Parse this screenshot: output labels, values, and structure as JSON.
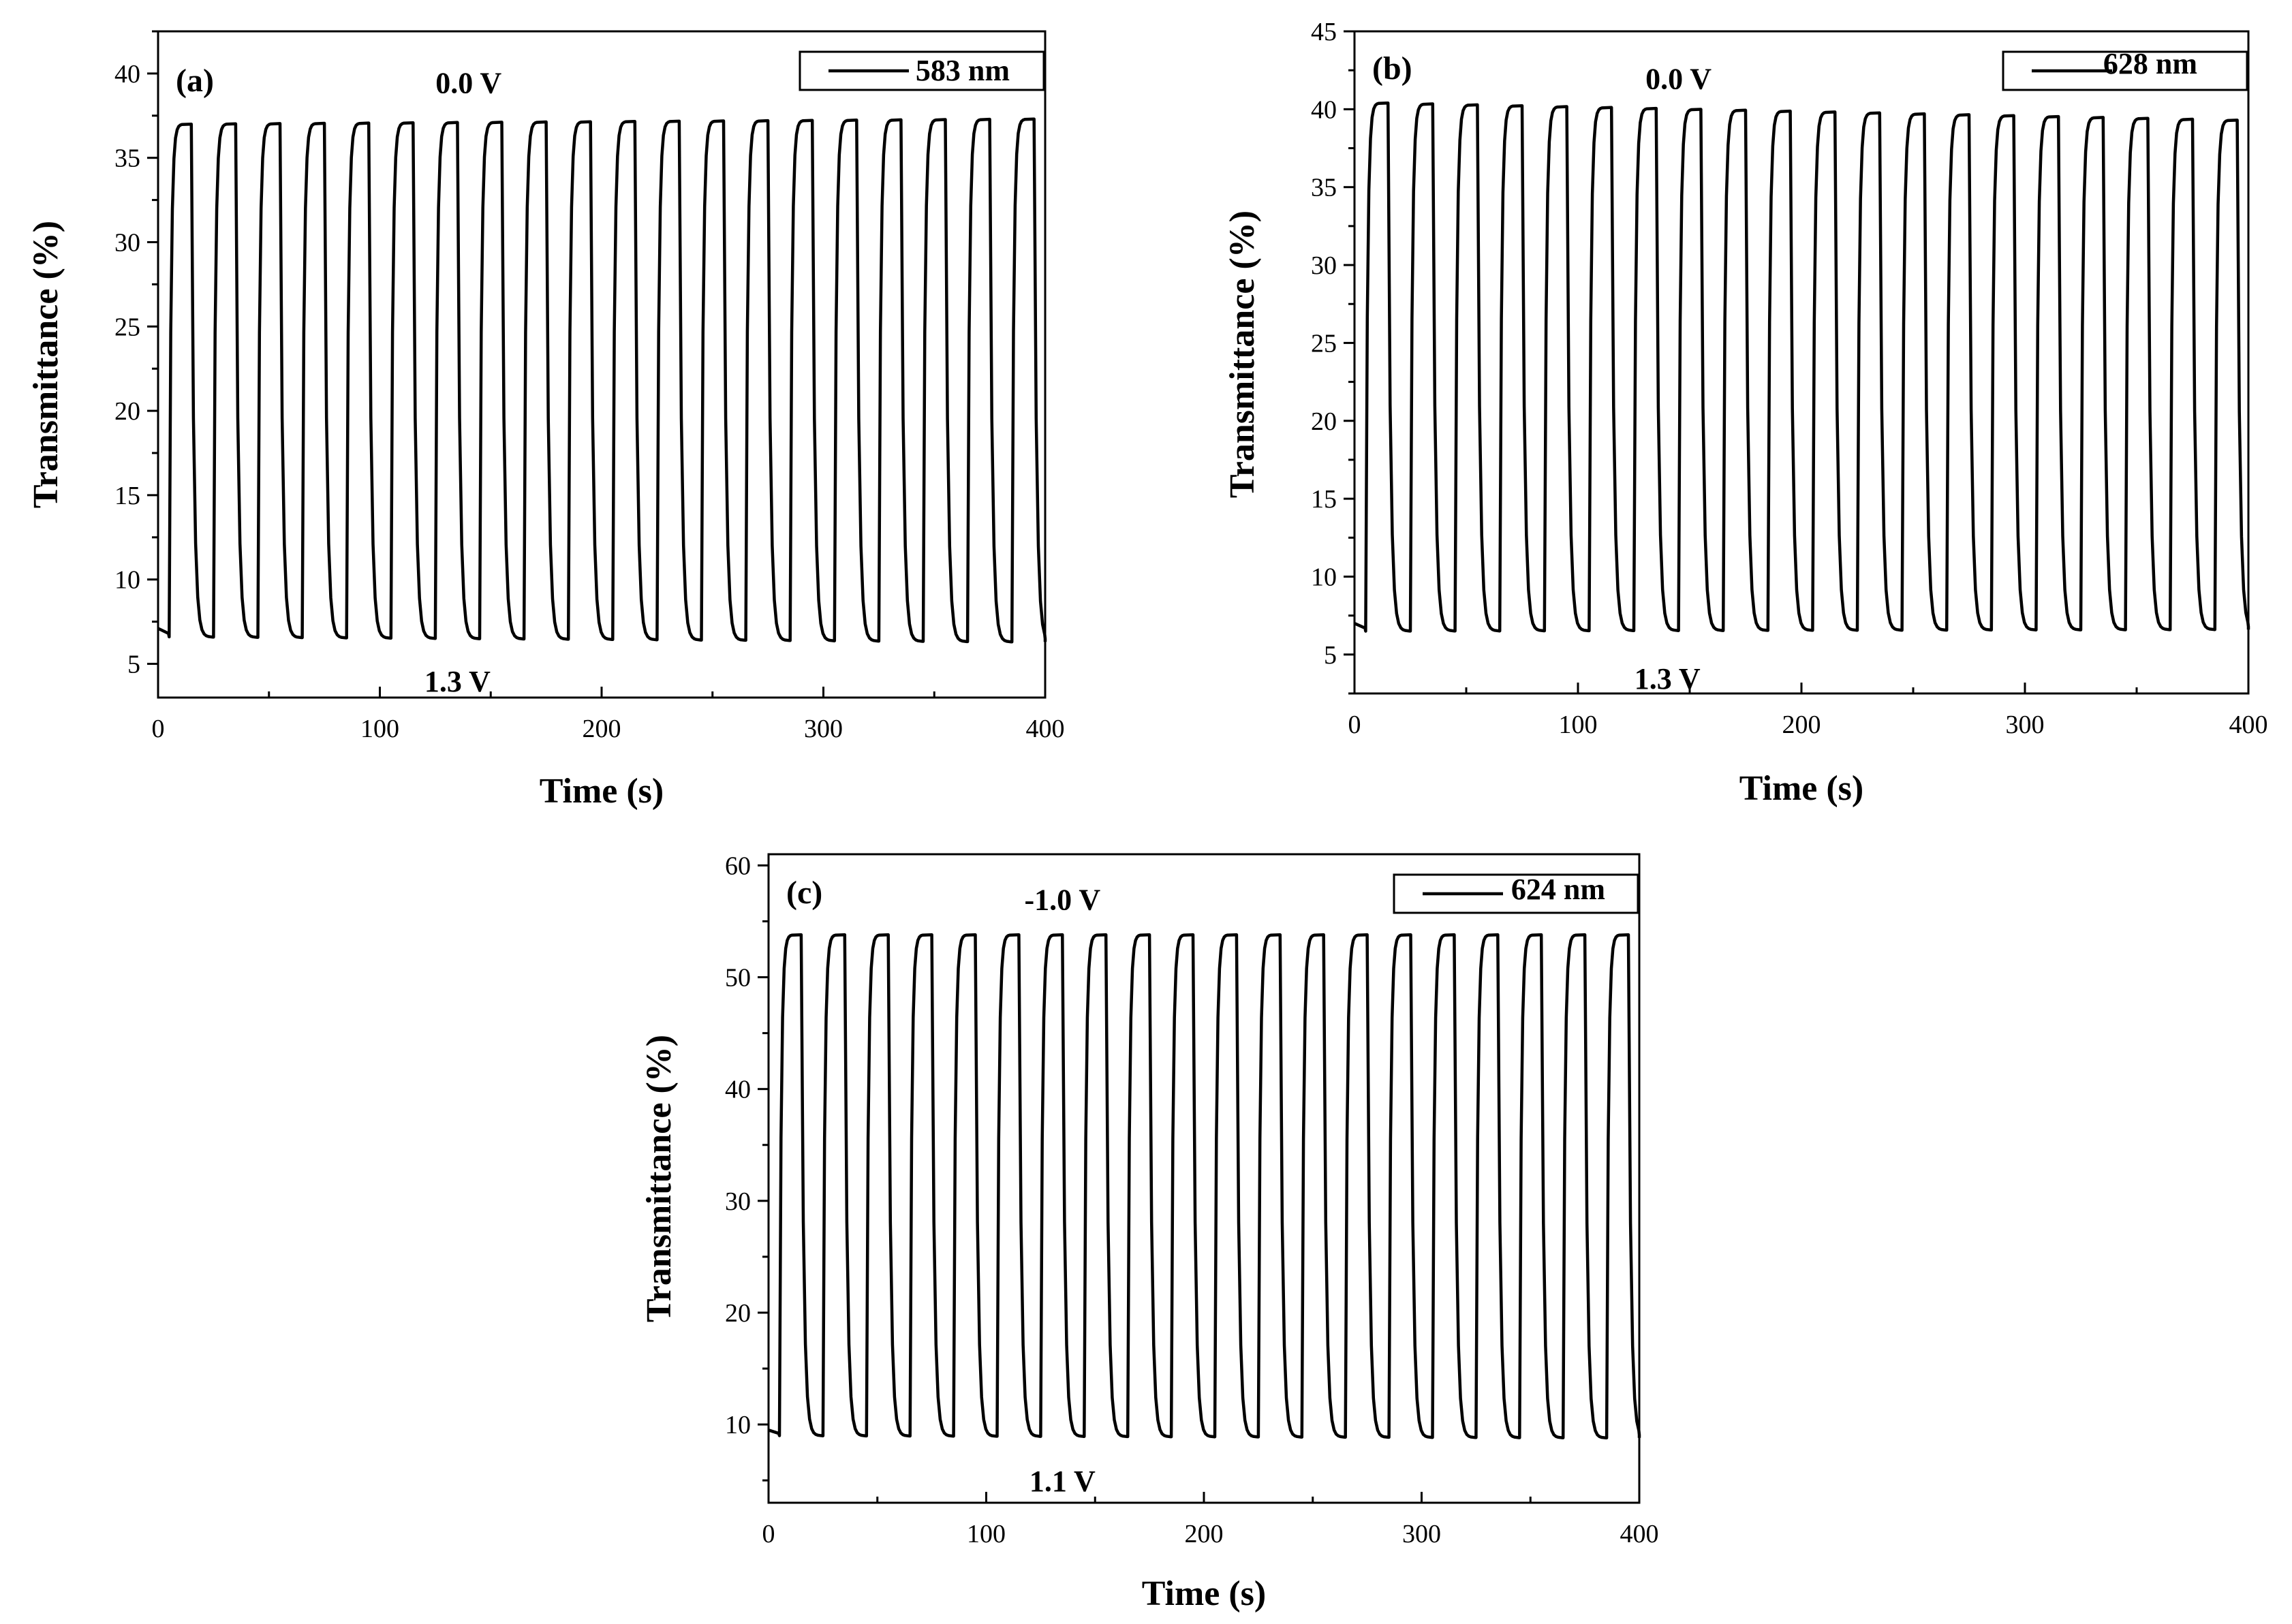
{
  "chart_data": [
    {
      "type": "line",
      "panel": "(a)",
      "legend": "583 nm",
      "xlabel": "Time (s)",
      "ylabel": "Transmittance (%)",
      "xlim": [
        0,
        400
      ],
      "ylim": [
        3,
        42.5
      ],
      "xticks": [
        0,
        100,
        200,
        300,
        400
      ],
      "yticks": [
        5,
        10,
        15,
        20,
        25,
        30,
        35,
        40
      ],
      "grid": false,
      "annotations": [
        {
          "text": "0.0 V",
          "x": 140,
          "y": 39.5
        },
        {
          "text": "1.3 V",
          "x": 135,
          "y": 4.0
        }
      ],
      "cycle": {
        "period_s": 20,
        "count": 20,
        "first_switch_s": 5
      },
      "series": [
        {
          "name": "583 nm",
          "bleached_start": 37.0,
          "bleached_end": 37.3,
          "colored_start": 6.6,
          "colored_end": 6.3
        }
      ]
    },
    {
      "type": "line",
      "panel": "(b)",
      "legend": "628 nm",
      "xlabel": "Time (s)",
      "ylabel": "Transmittance (%)",
      "xlim": [
        0,
        400
      ],
      "ylim": [
        2.5,
        45
      ],
      "xticks": [
        0,
        100,
        200,
        300,
        400
      ],
      "yticks": [
        5,
        10,
        15,
        20,
        25,
        30,
        35,
        40,
        45
      ],
      "grid": false,
      "annotations": [
        {
          "text": "0.0 V",
          "x": 145,
          "y": 42.0
        },
        {
          "text": "1.3 V",
          "x": 140,
          "y": 3.5
        }
      ],
      "cycle": {
        "period_s": 20,
        "count": 20,
        "first_switch_s": 5
      },
      "series": [
        {
          "name": "628 nm",
          "bleached_start": 40.4,
          "bleached_end": 39.3,
          "colored_start": 6.5,
          "colored_end": 6.6
        }
      ]
    },
    {
      "type": "line",
      "panel": "(c)",
      "legend": "624 nm",
      "xlabel": "Time (s)",
      "ylabel": "Transmittance (%)",
      "xlim": [
        0,
        400
      ],
      "ylim": [
        3,
        61
      ],
      "xticks": [
        0,
        100,
        200,
        300,
        400
      ],
      "yticks": [
        10,
        20,
        30,
        40,
        50,
        60
      ],
      "grid": false,
      "annotations": [
        {
          "text": "-1.0 V",
          "x": 135,
          "y": 57.0
        },
        {
          "text": "1.1 V",
          "x": 135,
          "y": 5.0
        }
      ],
      "cycle": {
        "period_s": 20,
        "count": 20,
        "first_switch_s": 5
      },
      "series": [
        {
          "name": "624 nm",
          "bleached_start": 53.8,
          "bleached_end": 53.8,
          "colored_start": 9.0,
          "colored_end": 8.8
        }
      ]
    }
  ]
}
